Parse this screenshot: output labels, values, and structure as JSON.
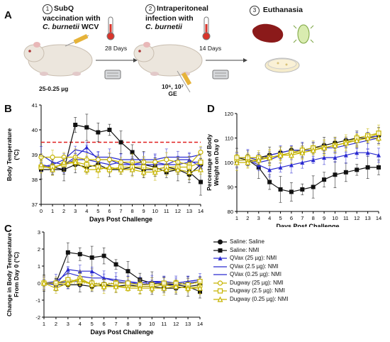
{
  "panels": {
    "a": "A",
    "b": "B",
    "c": "C",
    "d": "D"
  },
  "schematic": {
    "step1": {
      "num": "1",
      "title_line1": "SubQ",
      "title_line2": "vaccination with",
      "title_line3_italic": "C. burnetii",
      "title_line3_rest": " WCV",
      "dose": "25-0.25 µg"
    },
    "step2": {
      "num": "2",
      "title_line1": "Intraperitoneal",
      "title_line2": "infection with",
      "title_line3_italic": "C. burnetii",
      "dose": "10⁶, 10⁷",
      "dose_unit": "GE"
    },
    "step3": {
      "num": "3",
      "title": "Euthanasia"
    },
    "interval1": "28 Days",
    "interval2": "14 Days",
    "colors": {
      "thermometer": "#d9342b",
      "guinea_pig": "#e8e0d6",
      "spleen": "#8b1a1a",
      "syringe": "#e6b33a"
    }
  },
  "legend": [
    {
      "label": "Saline: Saline",
      "color": "#111111",
      "marker": "circle-filled"
    },
    {
      "label": "Saline: NMI",
      "color": "#111111",
      "marker": "square-filled"
    },
    {
      "label": "QVax (25 µg): NMI",
      "color": "#2a2ad0",
      "marker": "triangle-filled"
    },
    {
      "label": "QVax (2.5 µg): NMI",
      "color": "#2a2ad0",
      "marker": "none"
    },
    {
      "label": "QVax (0.25 µg): NMI",
      "color": "#2a2ad0",
      "marker": "none"
    },
    {
      "label": "Dugway (25 µg): NMI",
      "color": "#c6b400",
      "marker": "circle-open"
    },
    {
      "label": "Dugway (2.5 µg): NMI",
      "color": "#c6b400",
      "marker": "square-open"
    },
    {
      "label": "Dugway (0.25 µg): NMI",
      "color": "#c6b400",
      "marker": "triangle-open"
    }
  ],
  "chart_data": [
    {
      "id": "B",
      "type": "line",
      "xlabel": "Days Post Challenge",
      "ylabel": "Body Temperature (°C)",
      "x": [
        0,
        1,
        2,
        3,
        4,
        5,
        6,
        7,
        8,
        9,
        10,
        11,
        12,
        13,
        14
      ],
      "xlim": [
        0,
        14
      ],
      "ylim": [
        37,
        41
      ],
      "yticks": [
        37,
        38,
        39,
        40,
        41
      ],
      "reference_line": {
        "y": 39.5,
        "color": "#e02020",
        "style": "dashed"
      },
      "series": [
        {
          "name": "Saline: Saline",
          "color": "#111111",
          "values": [
            38.5,
            38.5,
            38.4,
            38.6,
            38.5,
            38.6,
            38.4,
            38.4,
            38.5,
            38.4,
            38.4,
            38.5,
            38.4,
            38.2,
            38.6
          ]
        },
        {
          "name": "Saline: NMI",
          "color": "#111111",
          "values": [
            38.4,
            38.4,
            38.4,
            40.2,
            40.1,
            39.9,
            40.0,
            39.5,
            39.1,
            38.6,
            38.5,
            38.3,
            38.4,
            38.3,
            37.9
          ]
        },
        {
          "name": "QVax (25 µg): NMI",
          "color": "#2a2ad0",
          "values": [
            39.0,
            38.7,
            38.6,
            38.9,
            39.3,
            38.8,
            38.8,
            38.6,
            38.6,
            38.7,
            38.7,
            38.6,
            38.8,
            38.8,
            38.5
          ]
        },
        {
          "name": "QVax (2.5 µg): NMI",
          "color": "#2a2ad0",
          "values": [
            38.5,
            38.6,
            38.8,
            39.2,
            39.1,
            38.9,
            38.9,
            38.8,
            38.8,
            38.8,
            38.8,
            38.9,
            38.9,
            38.9,
            39.0
          ]
        },
        {
          "name": "QVax (0.25 µg): NMI",
          "color": "#2a2ad0",
          "values": [
            38.6,
            38.5,
            38.6,
            38.8,
            38.8,
            38.7,
            38.6,
            38.7,
            38.6,
            38.6,
            38.6,
            38.6,
            38.6,
            38.7,
            38.7
          ]
        },
        {
          "name": "Dugway (25 µg): NMI",
          "color": "#c6b400",
          "values": [
            38.9,
            38.9,
            38.9,
            38.9,
            38.8,
            38.8,
            38.8,
            38.7,
            38.7,
            38.7,
            38.7,
            38.8,
            38.7,
            38.6,
            39.1
          ]
        },
        {
          "name": "Dugway (2.5 µg): NMI",
          "color": "#c6b400",
          "values": [
            38.5,
            38.5,
            38.6,
            38.7,
            38.6,
            38.5,
            38.4,
            38.5,
            38.5,
            38.5,
            38.4,
            38.5,
            38.5,
            38.5,
            38.7
          ]
        },
        {
          "name": "Dugway (0.25 µg): NMI",
          "color": "#c6b400",
          "values": [
            38.6,
            38.4,
            38.7,
            38.7,
            38.4,
            38.4,
            38.5,
            38.4,
            38.4,
            38.3,
            38.3,
            38.4,
            38.4,
            38.3,
            38.4
          ]
        }
      ]
    },
    {
      "id": "D",
      "type": "line",
      "xlabel": "Days Post Challenge",
      "ylabel": "Percentage of Body Weight on Day 0",
      "x": [
        1,
        2,
        3,
        4,
        5,
        6,
        7,
        8,
        9,
        10,
        11,
        12,
        13,
        14
      ],
      "xlim": [
        1,
        14
      ],
      "ylim": [
        80,
        120
      ],
      "yticks": [
        80,
        90,
        100,
        110,
        120
      ],
      "series": [
        {
          "name": "Saline: Saline",
          "color": "#111111",
          "values": [
            102,
            102,
            102,
            103,
            104,
            105,
            105,
            106,
            107,
            108,
            109,
            110,
            110,
            111
          ]
        },
        {
          "name": "Saline: NMI",
          "color": "#111111",
          "values": [
            102,
            101,
            98,
            92,
            89,
            88,
            89,
            90,
            93,
            95,
            96,
            97,
            98,
            98
          ]
        },
        {
          "name": "QVax (25 µg): NMI",
          "color": "#2a2ad0",
          "values": [
            101,
            101,
            99,
            97,
            98,
            99,
            100,
            101,
            102,
            102,
            103,
            104,
            104,
            103
          ]
        },
        {
          "name": "QVax (2.5 µg): NMI",
          "color": "#2a2ad0",
          "values": [
            102,
            102,
            101,
            103,
            104,
            105,
            105,
            106,
            106,
            107,
            108,
            109,
            110,
            111
          ]
        },
        {
          "name": "QVax (0.25 µg): NMI",
          "color": "#2a2ad0",
          "values": [
            101,
            101,
            100,
            101,
            103,
            104,
            105,
            105,
            106,
            106,
            107,
            108,
            109,
            110
          ]
        },
        {
          "name": "Dugway (25 µg): NMI",
          "color": "#c6b400",
          "values": [
            101,
            101,
            101,
            102,
            103,
            104,
            104,
            105,
            106,
            107,
            108,
            109,
            110,
            112
          ]
        },
        {
          "name": "Dugway (2.5 µg): NMI",
          "color": "#c6b400",
          "values": [
            102,
            102,
            102,
            102,
            103,
            104,
            105,
            106,
            106,
            107,
            108,
            110,
            111,
            112
          ]
        },
        {
          "name": "Dugway (0.25 µg): NMI",
          "color": "#c6b400",
          "values": [
            100,
            100,
            101,
            102,
            103,
            103,
            104,
            105,
            106,
            107,
            108,
            109,
            110,
            110
          ]
        }
      ]
    },
    {
      "id": "C",
      "type": "line",
      "xlabel": "Days Post Challenge",
      "ylabel": "Change in Body Temperature From Day 0 (°C)",
      "x": [
        1,
        2,
        3,
        4,
        5,
        6,
        7,
        8,
        9,
        10,
        11,
        12,
        13,
        14
      ],
      "xlim": [
        1,
        14
      ],
      "ylim": [
        -2,
        3
      ],
      "yticks": [
        -2,
        -1,
        0,
        1,
        2,
        3
      ],
      "reference_line": {
        "y": 0,
        "color": "#c6b400",
        "style": "dotted"
      },
      "series": [
        {
          "name": "Saline: Saline",
          "color": "#111111",
          "values": [
            0.0,
            -0.1,
            -0.1,
            -0.1,
            -0.2,
            -0.1,
            -0.2,
            -0.1,
            -0.2,
            -0.2,
            -0.3,
            -0.3,
            -0.2,
            -0.1
          ]
        },
        {
          "name": "Saline: NMI",
          "color": "#111111",
          "values": [
            0.0,
            0.0,
            1.8,
            1.7,
            1.5,
            1.6,
            1.1,
            0.7,
            0.2,
            0.0,
            -0.1,
            -0.1,
            -0.2,
            -0.5
          ]
        },
        {
          "name": "QVax (25 µg): NMI",
          "color": "#2a2ad0",
          "values": [
            0.0,
            -0.1,
            0.8,
            0.7,
            0.7,
            0.3,
            0.1,
            0.0,
            0.0,
            0.1,
            0.0,
            0.0,
            0.1,
            0.2
          ]
        },
        {
          "name": "QVax (2.5 µg): NMI",
          "color": "#2a2ad0",
          "values": [
            0.0,
            0.1,
            0.6,
            0.4,
            0.3,
            0.3,
            0.2,
            0.1,
            0.0,
            0.1,
            0.1,
            0.0,
            0.1,
            0.2
          ]
        },
        {
          "name": "QVax (0.25 µg): NMI",
          "color": "#2a2ad0",
          "values": [
            0.0,
            0.0,
            0.1,
            0.1,
            0.0,
            -0.1,
            0.0,
            0.0,
            -0.1,
            0.0,
            0.0,
            -0.1,
            0.0,
            0.1
          ]
        },
        {
          "name": "Dugway (25 µg): NMI",
          "color": "#c6b400",
          "values": [
            0.0,
            0.0,
            0.0,
            0.3,
            -0.1,
            -0.2,
            -0.2,
            -0.2,
            -0.2,
            -0.2,
            -0.1,
            -0.2,
            -0.3,
            -0.2
          ]
        },
        {
          "name": "Dugway (2.5 µg): NMI",
          "color": "#c6b400",
          "values": [
            0.0,
            0.0,
            0.2,
            0.1,
            0.0,
            -0.1,
            0.0,
            0.0,
            -0.1,
            -0.1,
            0.0,
            0.0,
            -0.1,
            0.1
          ]
        },
        {
          "name": "Dugway (0.25 µg): NMI",
          "color": "#c6b400",
          "values": [
            0.0,
            -0.3,
            0.0,
            0.2,
            -0.1,
            -0.2,
            -0.2,
            -0.3,
            -0.3,
            -0.3,
            -0.3,
            -0.2,
            -0.3,
            -0.3
          ]
        }
      ]
    }
  ]
}
